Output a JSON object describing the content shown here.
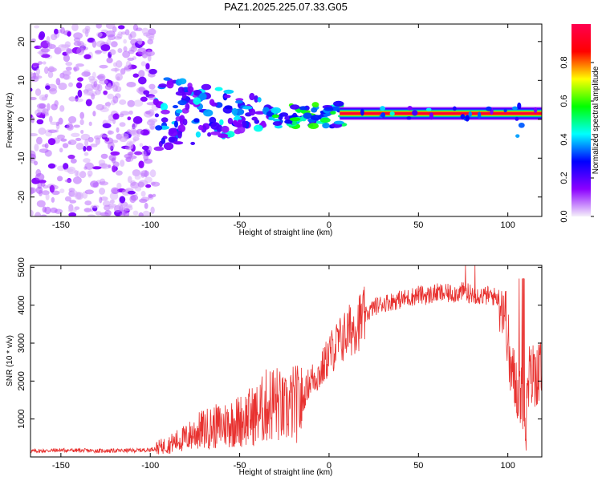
{
  "figure": {
    "title": "PAZ1.2025.225.07.33.G05"
  },
  "chart_data": [
    {
      "type": "heatmap",
      "title": "PAZ1.2025.225.07.33.G05",
      "xlabel": "Height of straight line (km)",
      "ylabel": "Frequency (Hz)",
      "xlim": [
        -167,
        119
      ],
      "ylim": [
        -25,
        24.5
      ],
      "x_ticks": [
        -150,
        -100,
        -50,
        0,
        50,
        100
      ],
      "y_ticks": [
        -20,
        -10,
        0,
        10,
        20
      ],
      "grid": false,
      "colorbar": {
        "label": "Normalized spectral amplitude",
        "range": [
          0,
          1
        ],
        "ticks": [
          "0.0",
          "0.2",
          "0.4",
          "0.6",
          "0.8"
        ],
        "colormap": "rainbow",
        "colors": [
          "#f5f0fa",
          "#8b00ff",
          "#0000ff",
          "#00ffff",
          "#00ff00",
          "#ffff00",
          "#ff0000",
          "#ff0050"
        ]
      },
      "dominant_line": {
        "description": "Dominant frequency",
        "x_range": [
          10,
          119
        ],
        "frequency_hz": 1.5
      },
      "regions": [
        {
          "x_range": [
            -167,
            -97
          ],
          "frequency_range": [
            -25,
            24.5
          ],
          "amplitude": "low scattered noise"
        },
        {
          "x_range": [
            -97,
            -30
          ],
          "frequency_range": [
            -10,
            10
          ],
          "amplitude": "medium-high clustered"
        },
        {
          "x_range": [
            -30,
            10
          ],
          "frequency_range": [
            -2,
            4
          ],
          "amplitude": "converging to single line"
        },
        {
          "x_range": [
            10,
            119
          ],
          "frequency_range": [
            0.5,
            2.5
          ],
          "amplitude": "high (~1.0)"
        }
      ]
    },
    {
      "type": "line",
      "xlabel": "Height of straight line (km)",
      "ylabel": "SNR (10 * v/v)",
      "xlim": [
        -167,
        119
      ],
      "ylim": [
        0,
        5050
      ],
      "x_ticks": [
        -150,
        -100,
        -50,
        0,
        50,
        100
      ],
      "y_ticks": [
        1000,
        2000,
        3000,
        4000,
        5000
      ],
      "grid": false,
      "color": "#e8312f",
      "series": [
        {
          "x": [
            -167,
            -150,
            -130,
            -110,
            -100,
            -95,
            -90,
            -85,
            -80,
            -75,
            -70,
            -65,
            -60,
            -55,
            -50,
            -45,
            -40,
            -35,
            -30,
            -25,
            -20,
            -15,
            -12,
            -10,
            -5,
            0,
            5,
            10,
            15,
            20,
            25,
            30,
            35,
            40,
            45,
            50,
            55,
            60,
            65,
            70,
            75,
            80,
            85,
            90,
            95,
            98,
            100,
            101,
            103,
            105,
            108,
            110,
            112,
            115,
            119
          ],
          "y": [
            150,
            180,
            160,
            170,
            190,
            260,
            320,
            420,
            500,
            640,
            730,
            780,
            830,
            900,
            950,
            1050,
            1120,
            1350,
            1450,
            1200,
            1400,
            1400,
            1900,
            2050,
            2200,
            2700,
            3000,
            3250,
            3500,
            3700,
            3950,
            4050,
            4100,
            4150,
            4200,
            4280,
            4250,
            4320,
            4300,
            4320,
            4350,
            4300,
            4250,
            4250,
            4200,
            3950,
            3250,
            2400,
            2100,
            1850,
            1650,
            900,
            2100,
            2200,
            2220
          ]
        }
      ]
    }
  ]
}
